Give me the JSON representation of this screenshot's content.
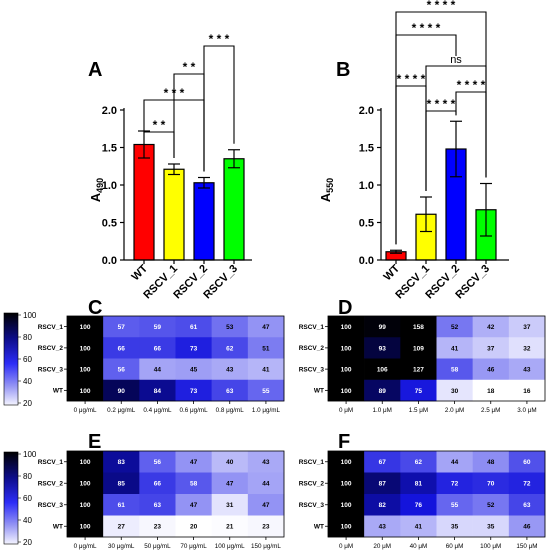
{
  "chart_data": [
    {
      "type": "bar",
      "panel_label": "A",
      "ylabel_base": "A",
      "ylabel_sub": "490",
      "categories": [
        "WT",
        "RSCV_1",
        "RSCV_2",
        "RSCV_3"
      ],
      "values": [
        1.54,
        1.21,
        1.03,
        1.35
      ],
      "errors": [
        0.18,
        0.07,
        0.07,
        0.12
      ],
      "colors": [
        "#ff0000",
        "#ffff00",
        "#0000ff",
        "#00ff00"
      ],
      "ylim": [
        0,
        2.0
      ],
      "yticks": [
        "0.0",
        "0.5",
        "1.0",
        "1.5",
        "2.0"
      ],
      "significance": [
        {
          "a": 0,
          "b": 1,
          "label": "* *"
        },
        {
          "a": 0,
          "b": 2,
          "label": "* * *"
        },
        {
          "a": 1,
          "b": 2,
          "label": "* *"
        },
        {
          "a": 2,
          "b": 3,
          "label": "* * *"
        }
      ]
    },
    {
      "type": "bar",
      "panel_label": "B",
      "ylabel_base": "A",
      "ylabel_sub": "550",
      "categories": [
        "WT",
        "RSCV_1",
        "RSCV_2",
        "RSCV_3"
      ],
      "values": [
        0.11,
        0.61,
        1.48,
        0.67
      ],
      "errors": [
        0.02,
        0.23,
        0.37,
        0.35
      ],
      "colors": [
        "#ff0000",
        "#ffff00",
        "#0000ff",
        "#00ff00"
      ],
      "ylim": [
        0,
        2.0
      ],
      "yticks": [
        "0.0",
        "0.5",
        "1.0",
        "1.5",
        "2.0"
      ],
      "significance": [
        {
          "a": 0,
          "b": 1,
          "label": "* * * *"
        },
        {
          "a": 1,
          "b": 2,
          "label": "* * * *"
        },
        {
          "a": 2,
          "b": 3,
          "label": "* * * *"
        },
        {
          "a": 1,
          "b": 3,
          "label": "ns"
        },
        {
          "a": 0,
          "b": 2,
          "label": "* * * *"
        },
        {
          "a": 0,
          "b": 3,
          "label": "* * * *"
        }
      ]
    },
    {
      "type": "heatmap",
      "panel_label": "C",
      "rows": [
        "RSCV_1",
        "RSCV_2",
        "RSCV_3",
        "WT"
      ],
      "columns": [
        "0 μg/mL",
        "0.2 μg/mL",
        "0.4 μg/mL",
        "0.6 μg/mL",
        "0.8 μg/mL",
        "1.0 μg/mL"
      ],
      "values": [
        [
          100,
          57,
          59,
          61,
          53,
          47
        ],
        [
          100,
          66,
          66,
          73,
          62,
          51
        ],
        [
          100,
          56,
          44,
          45,
          43,
          41
        ],
        [
          100,
          90,
          84,
          73,
          63,
          55
        ]
      ],
      "range": [
        20,
        100
      ],
      "colorbar_ticks": [
        "100",
        "80",
        "60",
        "40",
        "20"
      ]
    },
    {
      "type": "heatmap",
      "panel_label": "D",
      "rows": [
        "RSCV_1",
        "RSCV_2",
        "RSCV_3",
        "WT"
      ],
      "columns": [
        "0 μM",
        "1.0 μM",
        "1.5 μM",
        "2.0 μM",
        "2.5 μM",
        "3.0 μM"
      ],
      "values": [
        [
          100,
          99,
          158,
          52,
          42,
          37
        ],
        [
          100,
          93,
          109,
          41,
          37,
          32
        ],
        [
          100,
          106,
          127,
          58,
          46,
          43
        ],
        [
          100,
          89,
          75,
          30,
          18,
          16
        ]
      ],
      "range": [
        20,
        100
      ]
    },
    {
      "type": "heatmap",
      "panel_label": "E",
      "rows": [
        "RSCV_1",
        "RSCV_2",
        "RSCV_3",
        "WT"
      ],
      "columns": [
        "0 μg/mL",
        "30 μg/mL",
        "50 μg/mL",
        "70 μg/mL",
        "100 μg/mL",
        "150 μg/mL"
      ],
      "values": [
        [
          100,
          83,
          56,
          47,
          40,
          43
        ],
        [
          100,
          85,
          66,
          58,
          47,
          44
        ],
        [
          100,
          61,
          63,
          47,
          31,
          47
        ],
        [
          100,
          27,
          23,
          20,
          21,
          23
        ]
      ],
      "range": [
        20,
        100
      ],
      "colorbar_ticks": [
        "100",
        "80",
        "60",
        "40",
        "20"
      ]
    },
    {
      "type": "heatmap",
      "panel_label": "F",
      "rows": [
        "RSCV_1",
        "RSCV_2",
        "RSCV_3",
        "WT"
      ],
      "columns": [
        "0 μM",
        "20 μM",
        "40 μM",
        "60 μM",
        "100 μM",
        "150 μM"
      ],
      "values": [
        [
          100,
          67,
          62,
          44,
          48,
          60
        ],
        [
          100,
          87,
          81,
          72,
          70,
          72
        ],
        [
          100,
          82,
          76,
          55,
          52,
          63
        ],
        [
          100,
          43,
          41,
          35,
          35,
          46
        ]
      ],
      "range": [
        20,
        100
      ]
    }
  ]
}
